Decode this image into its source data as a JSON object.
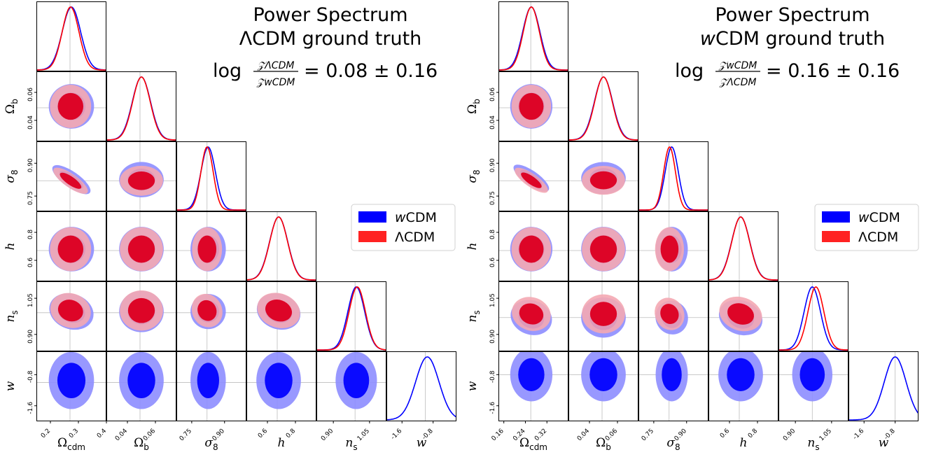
{
  "colors": {
    "wCDM": "#0000ff",
    "LCDM": "#ff0000",
    "grid": "#bdbdbd"
  },
  "params": [
    {
      "key": "Omega_cdm",
      "label": "Ωcdm"
    },
    {
      "key": "Omega_b",
      "label": "Ωb"
    },
    {
      "key": "sigma_8",
      "label": "σ8"
    },
    {
      "key": "h",
      "label": "h"
    },
    {
      "key": "n_s",
      "label": "ns"
    },
    {
      "key": "w",
      "label": "w"
    }
  ],
  "legend": [
    {
      "key": "wCDM",
      "label": "wCDM",
      "color": "#0000ff"
    },
    {
      "key": "LCDM",
      "label": "ΛCDM",
      "color": "#ff2222"
    }
  ],
  "chart_data": [
    {
      "type": "corner",
      "title": "Power Spectrum",
      "subtitle": "ΛCDM ground truth",
      "evidence": {
        "numerator": "𝒵ΛCDM",
        "denominator": "𝒵wCDM",
        "prefix": "log",
        "result": "= 0.08 ± 0.16"
      },
      "ranges": {
        "Omega_cdm": [
          0.15,
          0.4
        ],
        "Omega_b": [
          0.025,
          0.075
        ],
        "sigma_8": [
          0.68,
          1.0
        ],
        "h": [
          0.45,
          0.95
        ],
        "n_s": [
          0.83,
          1.12
        ],
        "w": [
          -2.0,
          -0.2
        ]
      },
      "ticks": {
        "Omega_cdm": [
          {
            "v": 0.2,
            "t": "0.2"
          },
          {
            "v": 0.3,
            "t": "0.3"
          },
          {
            "v": 0.4,
            "t": "0.4"
          }
        ],
        "Omega_b": [
          {
            "v": 0.04,
            "t": "0.04"
          },
          {
            "v": 0.06,
            "t": "0.06"
          }
        ],
        "sigma_8": [
          {
            "v": 0.75,
            "t": "0.75"
          },
          {
            "v": 0.9,
            "t": "0.90"
          }
        ],
        "h": [
          {
            "v": 0.6,
            "t": "0.6"
          },
          {
            "v": 0.8,
            "t": "0.8"
          }
        ],
        "n_s": [
          {
            "v": 0.9,
            "t": "0.90"
          },
          {
            "v": 1.05,
            "t": "1.05"
          }
        ],
        "w": [
          {
            "v": -1.6,
            "t": "-1.6"
          },
          {
            "v": -0.8,
            "t": "-0.8"
          }
        ]
      },
      "truth": {
        "Omega_cdm": 0.27,
        "Omega_b": 0.049,
        "sigma_8": 0.82,
        "h": 0.67,
        "n_s": 0.99,
        "w": -1.0
      },
      "series": [
        {
          "name": "wCDM",
          "mean": {
            "Omega_cdm": 0.275,
            "Omega_b": 0.05,
            "sigma_8": 0.825,
            "h": 0.68,
            "n_s": 0.995,
            "w": -0.95
          },
          "sd": {
            "Omega_cdm": 0.033,
            "Omega_b": 0.0065,
            "sigma_8": 0.033,
            "h": 0.065,
            "n_s": 0.035,
            "w": 0.3
          }
        },
        {
          "name": "ΛCDM",
          "mean": {
            "Omega_cdm": 0.272,
            "Omega_b": 0.05,
            "sigma_8": 0.82,
            "h": 0.68,
            "n_s": 0.999
          },
          "sd": {
            "Omega_cdm": 0.03,
            "Omega_b": 0.0063,
            "sigma_8": 0.028,
            "h": 0.064,
            "n_s": 0.034
          }
        }
      ]
    },
    {
      "type": "corner",
      "title": "Power Spectrum",
      "subtitle": "wCDM ground truth",
      "evidence": {
        "numerator": "𝒵wCDM",
        "denominator": "𝒵ΛCDM",
        "prefix": "log",
        "result": "= 0.16 ± 0.16"
      },
      "ranges": {
        "Omega_cdm": [
          0.14,
          0.4
        ],
        "Omega_b": [
          0.025,
          0.075
        ],
        "sigma_8": [
          0.68,
          1.0
        ],
        "h": [
          0.45,
          0.95
        ],
        "n_s": [
          0.83,
          1.12
        ],
        "w": [
          -2.0,
          -0.2
        ]
      },
      "ticks": {
        "Omega_cdm": [
          {
            "v": 0.16,
            "t": "0.16"
          },
          {
            "v": 0.24,
            "t": "0.24"
          },
          {
            "v": 0.32,
            "t": "0.32"
          }
        ],
        "Omega_b": [
          {
            "v": 0.04,
            "t": "0.04"
          },
          {
            "v": 0.06,
            "t": "0.06"
          }
        ],
        "sigma_8": [
          {
            "v": 0.75,
            "t": "0.75"
          },
          {
            "v": 0.9,
            "t": "0.90"
          }
        ],
        "h": [
          {
            "v": 0.6,
            "t": "0.6"
          },
          {
            "v": 0.8,
            "t": "0.8"
          }
        ],
        "n_s": [
          {
            "v": 0.9,
            "t": "0.90"
          },
          {
            "v": 1.05,
            "t": "1.05"
          }
        ],
        "w": [
          {
            "v": -1.6,
            "t": "-1.6"
          },
          {
            "v": -0.8,
            "t": "-0.8"
          }
        ]
      },
      "truth": {
        "Omega_cdm": 0.26,
        "Omega_b": 0.049,
        "sigma_8": 0.82,
        "h": 0.67,
        "n_s": 0.97,
        "w": -0.8
      },
      "series": [
        {
          "name": "wCDM",
          "mean": {
            "Omega_cdm": 0.262,
            "Omega_b": 0.05,
            "sigma_8": 0.832,
            "h": 0.68,
            "n_s": 0.97,
            "w": -0.8
          },
          "sd": {
            "Omega_cdm": 0.032,
            "Omega_b": 0.0065,
            "sigma_8": 0.03,
            "h": 0.065,
            "n_s": 0.034,
            "w": 0.28
          }
        },
        {
          "name": "ΛCDM",
          "mean": {
            "Omega_cdm": 0.262,
            "Omega_b": 0.05,
            "sigma_8": 0.822,
            "h": 0.68,
            "n_s": 0.985
          },
          "sd": {
            "Omega_cdm": 0.03,
            "Omega_b": 0.0063,
            "sigma_8": 0.027,
            "h": 0.064,
            "n_s": 0.033
          }
        }
      ]
    }
  ]
}
